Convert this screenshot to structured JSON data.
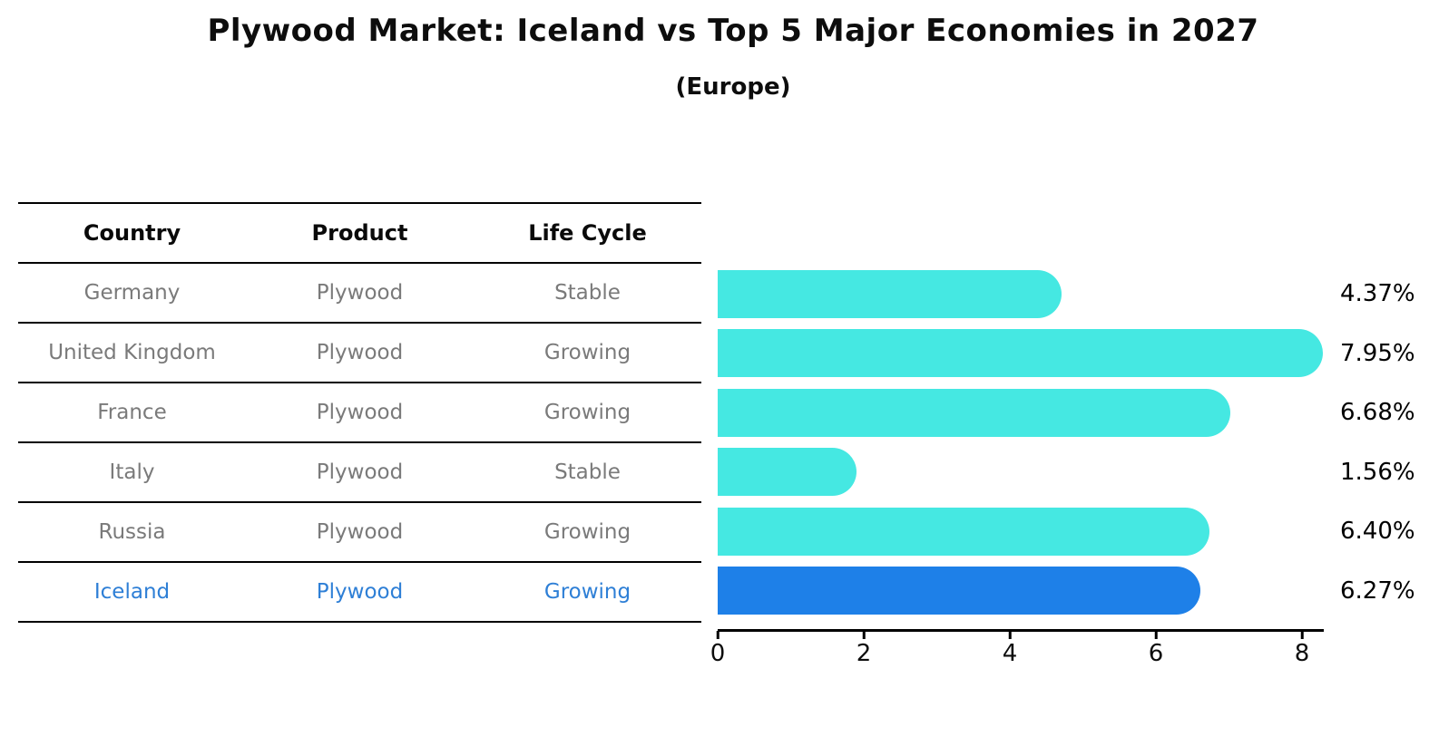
{
  "header": {
    "title": "Plywood Market: Iceland vs Top 5 Major Economies in 2027",
    "subtitle": "(Europe)"
  },
  "table": {
    "columns": [
      "Country",
      "Product",
      "Life Cycle"
    ],
    "rows": [
      {
        "country": "Germany",
        "product": "Plywood",
        "life_cycle": "Stable",
        "highlighted": false
      },
      {
        "country": "United Kingdom",
        "product": "Plywood",
        "life_cycle": "Growing",
        "highlighted": false
      },
      {
        "country": "France",
        "product": "Plywood",
        "life_cycle": "Growing",
        "highlighted": false
      },
      {
        "country": "Italy",
        "product": "Plywood",
        "life_cycle": "Stable",
        "highlighted": false
      },
      {
        "country": "Russia",
        "product": "Plywood",
        "life_cycle": "Growing",
        "highlighted": false
      },
      {
        "country": "Iceland",
        "product": "Plywood",
        "life_cycle": "Growing",
        "highlighted": true
      }
    ]
  },
  "chart_data": {
    "type": "bar",
    "orientation": "horizontal",
    "title": "Plywood Market: Iceland vs Top 5 Major Economies in 2027",
    "subtitle": "(Europe)",
    "categories": [
      "Germany",
      "United Kingdom",
      "France",
      "Italy",
      "Russia",
      "Iceland"
    ],
    "values": [
      4.37,
      7.95,
      6.68,
      1.56,
      6.4,
      6.27
    ],
    "value_labels": [
      "4.37%",
      "7.95%",
      "6.68%",
      "1.56%",
      "6.40%",
      "6.27%"
    ],
    "x_ticks": [
      0,
      2,
      4,
      6,
      8
    ],
    "xlim": [
      0,
      8.3
    ],
    "grid": false,
    "legend": false,
    "highlight_index": 5,
    "bar_color": "#45e8e2",
    "highlight_bar_color": "#1e80e8",
    "highlight_text_color": "#2e7fd6"
  }
}
